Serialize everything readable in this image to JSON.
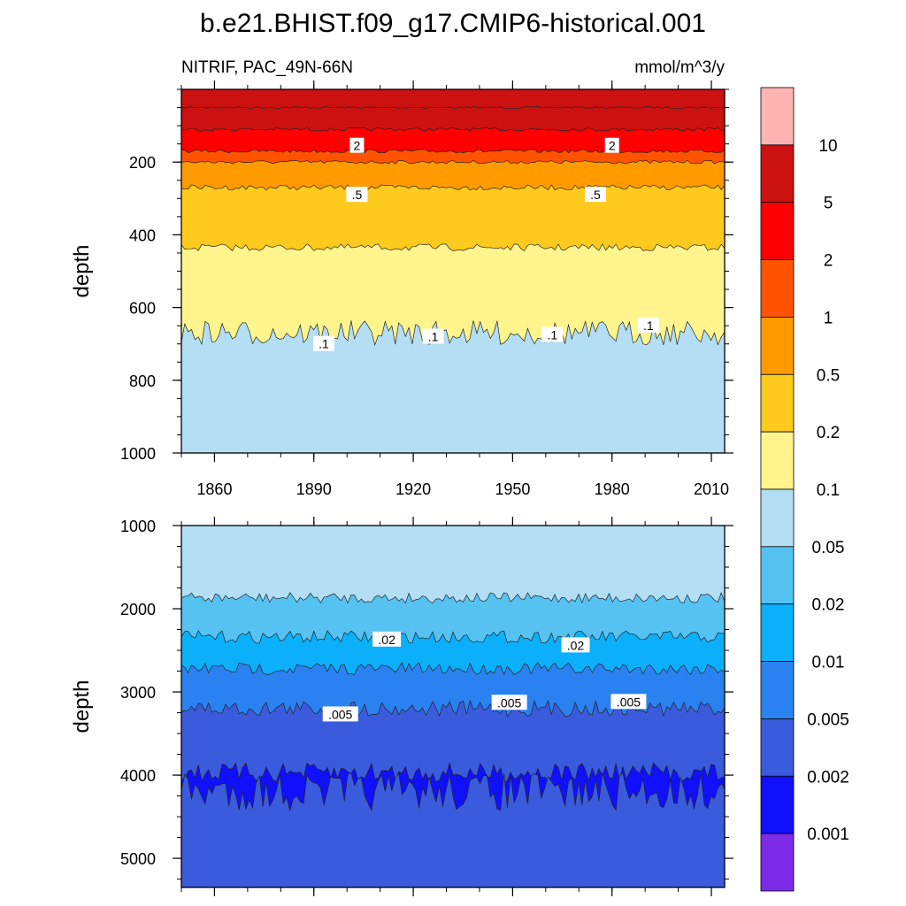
{
  "title": "b.e21.BHIST.f09_g17.CMIP6-historical.001",
  "subtitle_left": "NITRIF, PAC_49N-66N",
  "subtitle_right": "mmol/m^3/y",
  "colors": {
    "0.001": "#7b2be8",
    "0.002": "#3a5bdc",
    "0.005": "#2a82f0",
    "0.01": "#0cb0fa",
    "0.02": "#56c2f2",
    "0.05": "#b3def4",
    "0.1": "#fff58c",
    "0.2": "#ffca1e",
    "0.5": "#ff9b00",
    "1": "#ff5300",
    "2": "#ff0000",
    "5": "#cc1111",
    "10": "#ffb3b3"
  },
  "chart_data": [
    {
      "type": "heatmap",
      "name": "upper",
      "xlabel": "",
      "ylabel": "depth",
      "xlim": [
        1850,
        2014
      ],
      "ylim": [
        1000,
        0
      ],
      "xticks": [
        "1860",
        "1890",
        "1920",
        "1950",
        "1980",
        "2010"
      ],
      "yticks": [
        "200",
        "400",
        "600",
        "800",
        "1000"
      ],
      "contour_bands": [
        {
          "bottom_depth": 50,
          "fill": "#cc1111"
        },
        {
          "bottom_depth": 110,
          "fill": "#cc1111"
        },
        {
          "bottom_depth": 170,
          "fill": "#ff0000"
        },
        {
          "bottom_depth": 200,
          "fill": "#ff5300"
        },
        {
          "bottom_depth": 270,
          "fill": "#ff9b00"
        },
        {
          "bottom_depth": 435,
          "fill": "#ffca1e"
        },
        {
          "bottom_depth": 670,
          "fill": "#fff58c"
        },
        {
          "bottom_depth": 1000,
          "fill": "#b3def4"
        }
      ],
      "contour_labels": [
        {
          "text": "2",
          "year": 1903,
          "depth": 155
        },
        {
          "text": "2",
          "year": 1980,
          "depth": 155
        },
        {
          "text": ".5",
          "year": 1903,
          "depth": 290
        },
        {
          "text": ".5",
          "year": 1975,
          "depth": 290
        },
        {
          "text": ".1",
          "year": 1893,
          "depth": 700
        },
        {
          "text": ".1",
          "year": 1926,
          "depth": 680
        },
        {
          "text": ".1",
          "year": 1962,
          "depth": 675
        },
        {
          "text": ".1",
          "year": 1991,
          "depth": 650
        }
      ]
    },
    {
      "type": "heatmap",
      "name": "lower",
      "xlabel": "",
      "ylabel": "depth",
      "xlim": [
        1850,
        2014
      ],
      "ylim": [
        5350,
        1000
      ],
      "yticks": [
        "1000",
        "2000",
        "3000",
        "4000",
        "5000"
      ],
      "contour_bands": [
        {
          "bottom_depth": 1870,
          "fill": "#b3def4"
        },
        {
          "bottom_depth": 2340,
          "fill": "#56c2f2"
        },
        {
          "bottom_depth": 2720,
          "fill": "#0cb0fa"
        },
        {
          "bottom_depth": 3200,
          "fill": "#2a82f0"
        },
        {
          "bottom_depth": 3970,
          "fill": "#3a5bdc"
        },
        {
          "bottom_depth": 4200,
          "fill": "#1010ff"
        },
        {
          "bottom_depth": 5350,
          "fill": "#3a5bdc"
        }
      ],
      "contour_labels": [
        {
          "text": ".02",
          "year": 1912,
          "depth": 2370
        },
        {
          "text": ".02",
          "year": 1969,
          "depth": 2440
        },
        {
          "text": ".005",
          "year": 1898,
          "depth": 3270
        },
        {
          "text": ".005",
          "year": 1949,
          "depth": 3130
        },
        {
          "text": ".005",
          "year": 1985,
          "depth": 3120
        }
      ]
    }
  ],
  "colorbar": {
    "labels": [
      "10",
      "5",
      "2",
      "1",
      "0.5",
      "0.2",
      "0.1",
      "0.05",
      "0.02",
      "0.01",
      "0.005",
      "0.002",
      "0.001"
    ],
    "box_colors": [
      "#ffb3b3",
      "#cc1111",
      "#ff0000",
      "#ff5300",
      "#ff9b00",
      "#ffca1e",
      "#fff58c",
      "#b3def4",
      "#56c2f2",
      "#0cb0fa",
      "#2a82f0",
      "#3a5bdc",
      "#1010ff",
      "#7b2be8"
    ]
  }
}
